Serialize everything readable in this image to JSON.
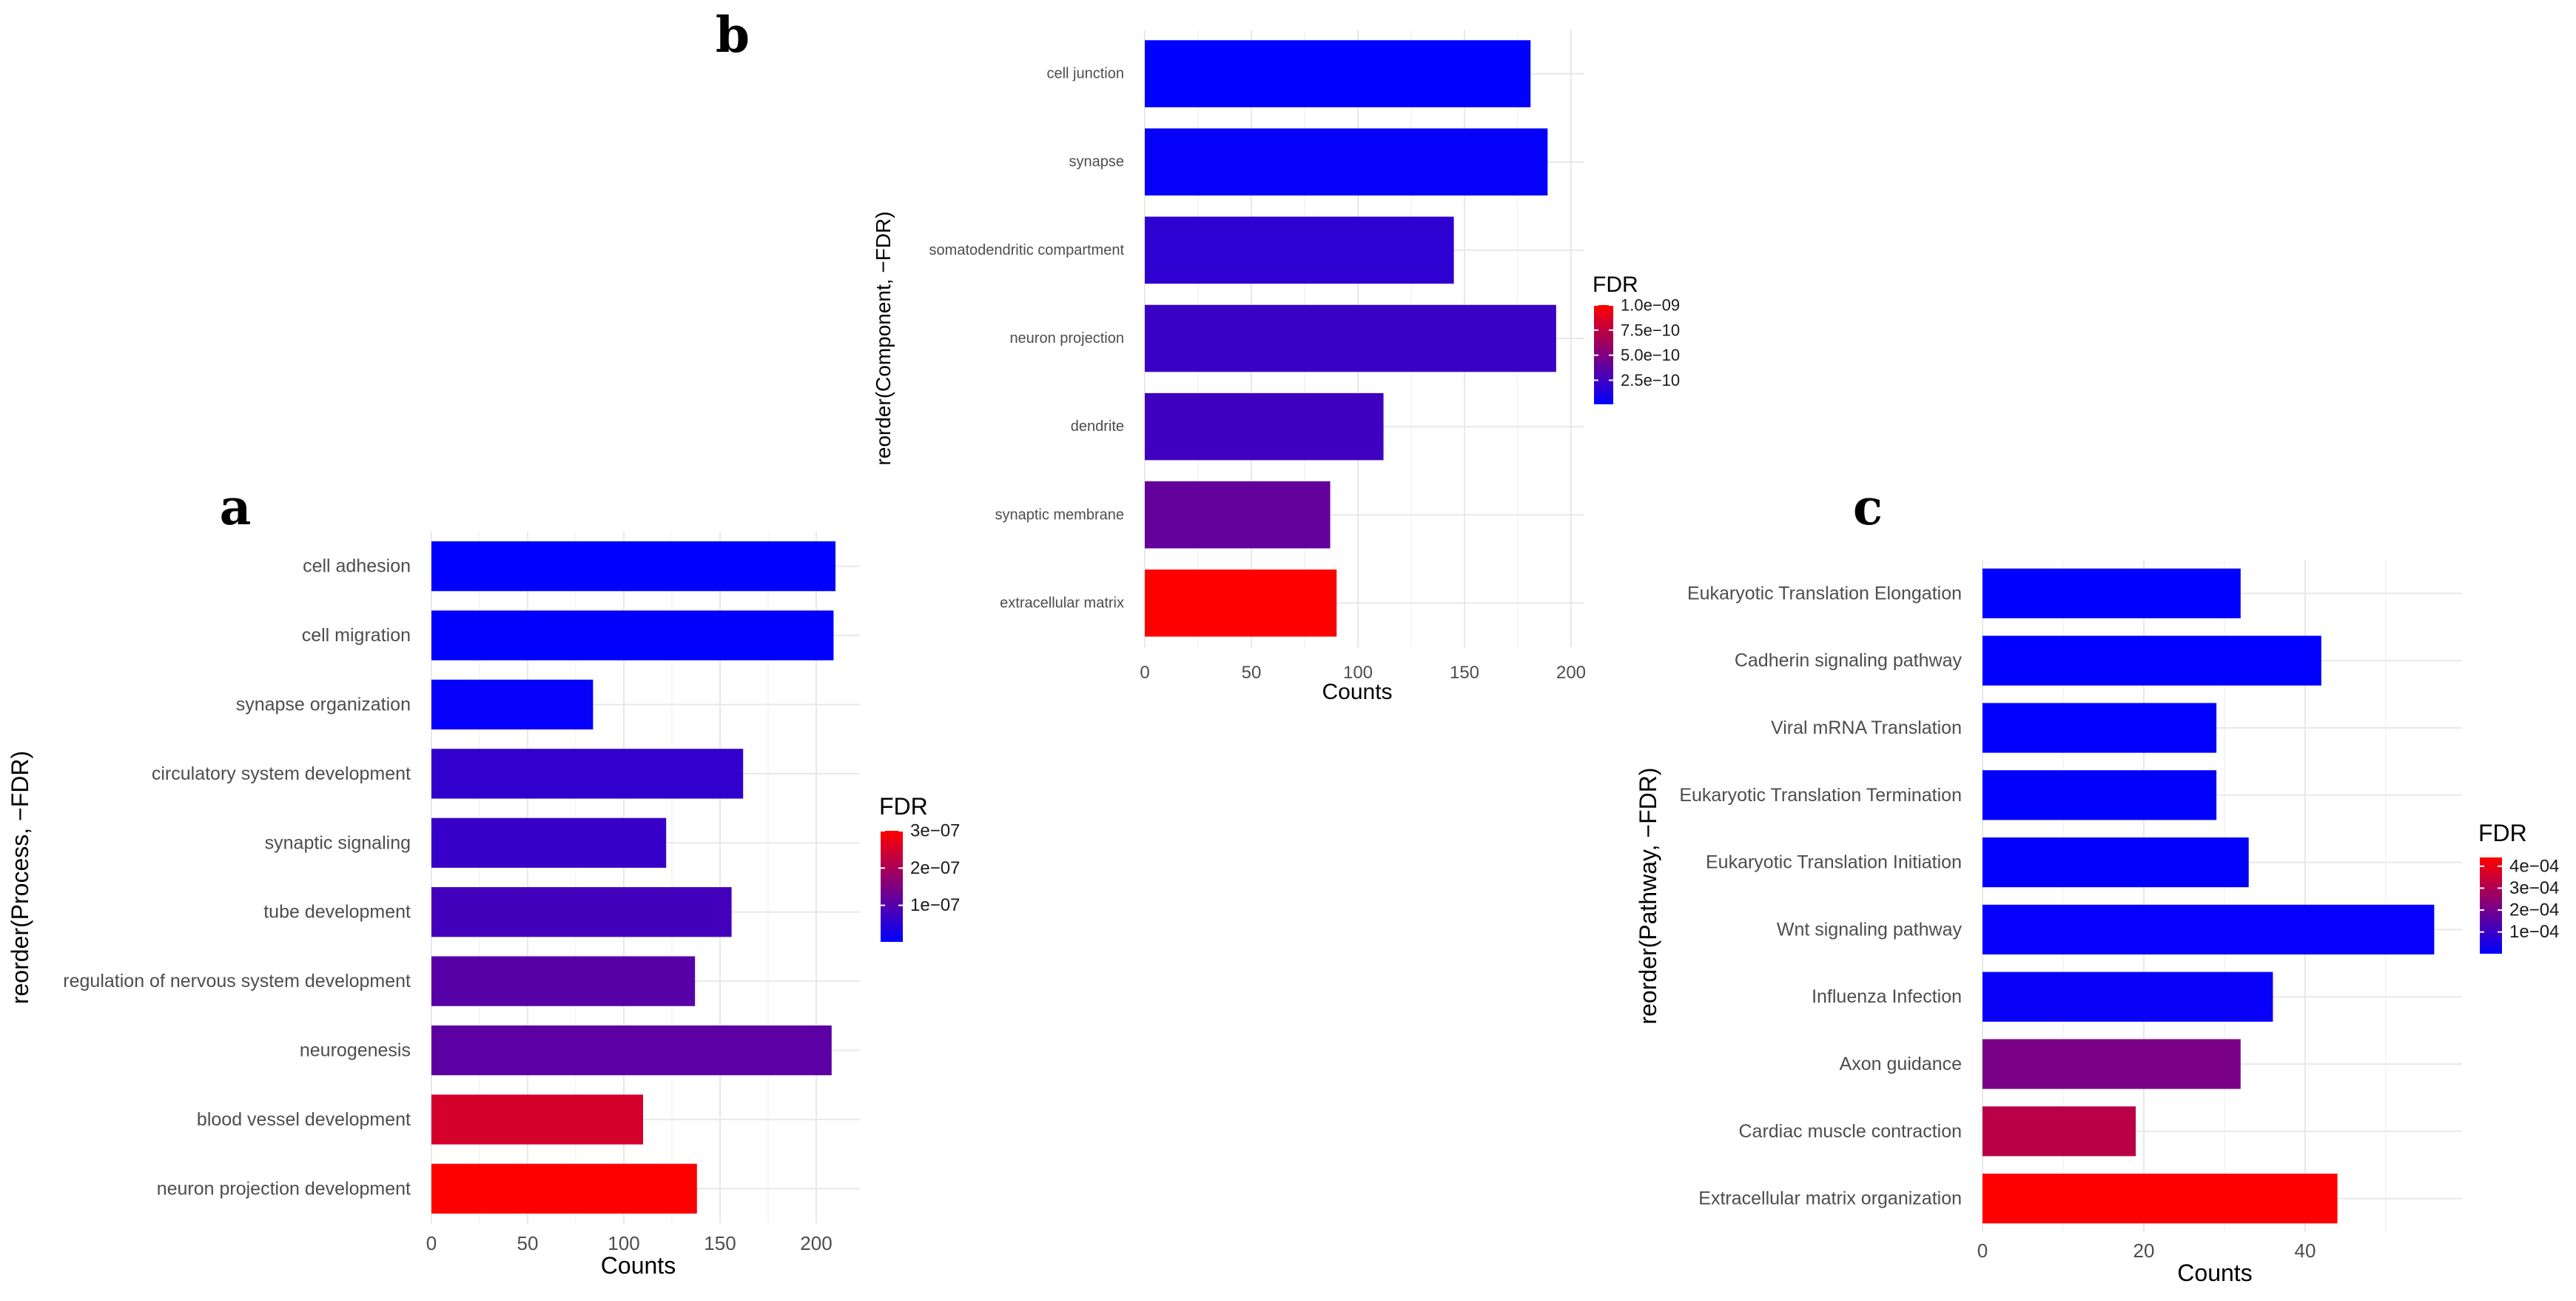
{
  "chart_data": [
    {
      "panel": "a",
      "type": "bar",
      "orientation": "horizontal",
      "ylabel": "reorder(Process, −FDR)",
      "xlabel": "Counts",
      "xlim": [
        0,
        220
      ],
      "xticks": [
        0,
        50,
        100,
        150,
        200
      ],
      "categories": [
        "cell adhesion",
        "cell migration",
        "synapse organization",
        "circulatory system development",
        "synaptic signaling",
        "tube development",
        "regulation of nervous system development",
        "neurogenesis",
        "blood vessel development",
        "neuron projection development"
      ],
      "values": [
        210,
        209,
        84,
        162,
        122,
        156,
        137,
        208,
        110,
        138
      ],
      "fdr": [
        2e-09,
        4e-09,
        8e-09,
        6e-08,
        6.5e-08,
        8e-08,
        1.05e-07,
        1.1e-07,
        2.5e-07,
        3e-07
      ],
      "legend": {
        "title": "FDR",
        "min": 2e-09,
        "max": 3e-07,
        "ticks": [
          1e-07,
          2e-07,
          3e-07
        ],
        "tick_labels": [
          "1e−07",
          "2e−07",
          "3e−07"
        ]
      }
    },
    {
      "panel": "b",
      "type": "bar",
      "orientation": "horizontal",
      "ylabel": "reorder(Component, −FDR)",
      "xlabel": "Counts",
      "xlim": [
        0,
        205
      ],
      "xticks": [
        0,
        50,
        100,
        150,
        200
      ],
      "categories": [
        "cell junction",
        "synapse",
        "somatodendritic compartment",
        "neuron projection",
        "dendrite",
        "synaptic membrane",
        "extracellular matrix"
      ],
      "values": [
        181,
        189,
        145,
        193,
        112,
        87,
        90
      ],
      "fdr": [
        1e-11,
        3e-11,
        1.9e-10,
        2.3e-10,
        2.6e-10,
        4e-10,
        1e-09
      ],
      "legend": {
        "title": "FDR",
        "min": 1e-11,
        "max": 1e-09,
        "ticks": [
          2.5e-10,
          5e-10,
          7.5e-10,
          1e-09
        ],
        "tick_labels": [
          "2.5e−10",
          "5.0e−10",
          "7.5e−10",
          "1.0e−09"
        ]
      }
    },
    {
      "panel": "c",
      "type": "bar",
      "orientation": "horizontal",
      "ylabel": "reorder(Pathway, −FDR)",
      "xlabel": "Counts",
      "xlim": [
        0,
        59
      ],
      "xticks": [
        0,
        20,
        40
      ],
      "categories": [
        "Eukaryotic Translation Elongation",
        "Cadherin signaling pathway",
        "Viral mRNA Translation",
        "Eukaryotic Translation Termination",
        "Eukaryotic Translation Initiation",
        "Wnt signaling pathway",
        "Influenza Infection",
        "Axon guidance",
        "Cardiac muscle contraction",
        "Extracellular matrix organization"
      ],
      "values": [
        32,
        42,
        29,
        29,
        33,
        56,
        36,
        32,
        19,
        44
      ],
      "fdr": [
        1e-06,
        2e-06,
        3e-06,
        4e-06,
        5e-06,
        8e-06,
        1.4e-05,
        0.00021,
        0.00032,
        0.00044
      ],
      "legend": {
        "title": "FDR",
        "min": 1e-06,
        "max": 0.00044,
        "ticks": [
          0.0001,
          0.0002,
          0.0003,
          0.0004
        ],
        "tick_labels": [
          "1e−04",
          "2e−04",
          "3e−04",
          "4e−04"
        ]
      }
    }
  ],
  "colors": {
    "low": "#0000ff",
    "high": "#ff0000",
    "grid": "#e8e8e8"
  }
}
